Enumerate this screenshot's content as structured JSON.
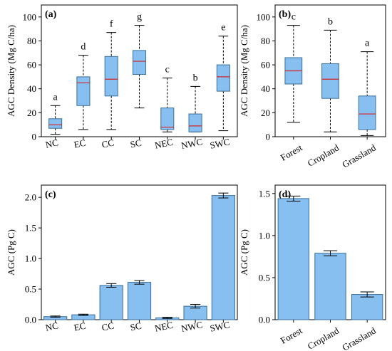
{
  "colors": {
    "box_fill": "#9ecae1",
    "box_fill_strong": "#87bff0",
    "median": "#d62728",
    "frame": "#000000"
  },
  "chart_data": [
    {
      "panel": "(a)",
      "type": "box",
      "ylabel": "AGC Density (Mg C/ha)",
      "ylim": [
        0,
        110
      ],
      "yticks": [
        0,
        20,
        40,
        60,
        80,
        100
      ],
      "categories": [
        "NC",
        "EC",
        "CC",
        "SC",
        "NEC",
        "NWC",
        "SWC"
      ],
      "letters": [
        "a",
        "d",
        "f",
        "g",
        "c",
        "b",
        "e"
      ],
      "boxes": [
        {
          "min": 2,
          "q1": 7,
          "median": 10,
          "q3": 15,
          "max": 26
        },
        {
          "min": 6,
          "q1": 26,
          "median": 45,
          "q3": 50,
          "max": 68
        },
        {
          "min": 6,
          "q1": 34,
          "median": 48,
          "q3": 67,
          "max": 87
        },
        {
          "min": 24,
          "q1": 52,
          "median": 63,
          "q3": 72,
          "max": 93
        },
        {
          "min": 4,
          "q1": 6,
          "median": 8,
          "q3": 24,
          "max": 49
        },
        {
          "min": 4,
          "q1": 4,
          "median": 9,
          "q3": 19,
          "max": 42
        },
        {
          "min": 5,
          "q1": 38,
          "median": 50,
          "q3": 60,
          "max": 84
        }
      ]
    },
    {
      "panel": "(b)",
      "type": "box",
      "ylabel": "AGC Density (Mg C/ha)",
      "ylim": [
        0,
        110
      ],
      "yticks": [
        0,
        20,
        40,
        60,
        80,
        100
      ],
      "categories": [
        "Forest",
        "Cropland",
        "Grassland"
      ],
      "letters": [
        "c",
        "b",
        "a"
      ],
      "boxes": [
        {
          "min": 12,
          "q1": 44,
          "median": 55,
          "q3": 66,
          "max": 93
        },
        {
          "min": 4,
          "q1": 32,
          "median": 48,
          "q3": 61,
          "max": 89
        },
        {
          "min": 1,
          "q1": 6,
          "median": 19,
          "q3": 34,
          "max": 71
        }
      ]
    },
    {
      "panel": "(c)",
      "type": "bar",
      "ylabel": "AGC (Pg C)",
      "ylim": [
        0,
        2.2
      ],
      "yticks": [
        "0.0",
        "0.5",
        "1.0",
        "1.5",
        "2.0"
      ],
      "categories": [
        "NC",
        "EC",
        "CC",
        "SC",
        "NEC",
        "NWC",
        "SWC"
      ],
      "values": [
        0.05,
        0.08,
        0.56,
        0.61,
        0.03,
        0.22,
        2.03
      ],
      "errors": [
        0.01,
        0.01,
        0.03,
        0.03,
        0.01,
        0.03,
        0.04
      ]
    },
    {
      "panel": "(d)",
      "type": "bar",
      "ylabel": "AGC (Pg C)",
      "ylim": [
        0,
        1.6
      ],
      "yticks": [
        "0.0",
        "0.5",
        "1.0",
        "1.5"
      ],
      "categories": [
        "Forest",
        "Cropland",
        "Grassland"
      ],
      "values": [
        1.44,
        0.79,
        0.3
      ],
      "errors": [
        0.03,
        0.03,
        0.03
      ]
    }
  ]
}
